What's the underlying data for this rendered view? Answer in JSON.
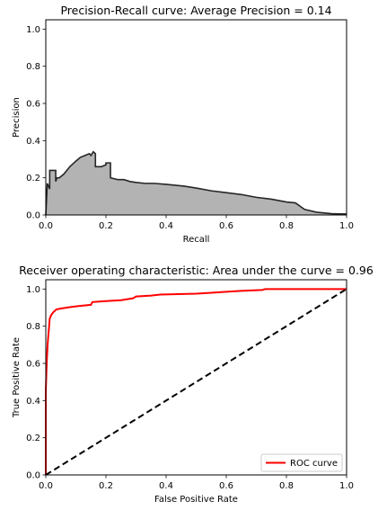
{
  "chart_data": [
    {
      "type": "area",
      "title": "Precision-Recall curve: Average Precision =     0.14",
      "xlabel": "Recall",
      "ylabel": "Precision",
      "xlim": [
        0,
        1
      ],
      "ylim": [
        0,
        1.05
      ],
      "xticks": [
        "0.0",
        "0.2",
        "0.4",
        "0.6",
        "0.8",
        "1.0"
      ],
      "yticks": [
        "0.0",
        "0.2",
        "0.4",
        "0.6",
        "0.8",
        "1.0"
      ],
      "grid": false,
      "fill_color": "#b3b3b3",
      "line_color": "#262626",
      "series": [
        {
          "x": [
            0.0,
            0.005,
            0.005,
            0.013,
            0.013,
            0.017,
            0.017,
            0.033,
            0.033,
            0.037,
            0.045,
            0.06,
            0.08,
            0.1,
            0.115,
            0.13,
            0.145,
            0.15,
            0.158,
            0.165,
            0.165,
            0.185,
            0.2,
            0.2,
            0.215,
            0.215,
            0.24,
            0.26,
            0.28,
            0.3,
            0.33,
            0.36,
            0.4,
            0.43,
            0.46,
            0.5,
            0.55,
            0.6,
            0.65,
            0.7,
            0.75,
            0.8,
            0.83,
            0.86,
            0.9,
            0.95,
            1.0
          ],
          "y": [
            0.0,
            0.17,
            0.17,
            0.14,
            0.24,
            0.24,
            0.24,
            0.24,
            0.18,
            0.2,
            0.2,
            0.22,
            0.26,
            0.29,
            0.31,
            0.32,
            0.33,
            0.32,
            0.34,
            0.33,
            0.26,
            0.26,
            0.27,
            0.28,
            0.28,
            0.2,
            0.19,
            0.19,
            0.18,
            0.175,
            0.17,
            0.17,
            0.165,
            0.16,
            0.155,
            0.145,
            0.13,
            0.12,
            0.11,
            0.095,
            0.085,
            0.07,
            0.065,
            0.03,
            0.015,
            0.007,
            0.005
          ]
        }
      ]
    },
    {
      "type": "line",
      "title": "Receiver operating characteristic:     Area under the curve = 0.96",
      "xlabel": "False Positive Rate",
      "ylabel": "True Positive Rate",
      "xlim": [
        0,
        1
      ],
      "ylim": [
        0,
        1.05
      ],
      "xticks": [
        "0.0",
        "0.2",
        "0.4",
        "0.6",
        "0.8",
        "1.0"
      ],
      "yticks": [
        "0.0",
        "0.2",
        "0.4",
        "0.6",
        "0.8",
        "1.0"
      ],
      "grid": false,
      "legend": {
        "placement": "lower-right",
        "entries": [
          {
            "name": "ROC curve",
            "color": "#ff0000"
          }
        ]
      },
      "series": [
        {
          "name": "ROC curve",
          "color": "#ff0000",
          "x": [
            0.0,
            0.0,
            0.003,
            0.006,
            0.01,
            0.013,
            0.018,
            0.025,
            0.035,
            0.05,
            0.07,
            0.09,
            0.12,
            0.15,
            0.155,
            0.2,
            0.25,
            0.29,
            0.3,
            0.35,
            0.38,
            0.5,
            0.55,
            0.6,
            0.65,
            0.72,
            0.73,
            1.0
          ],
          "y": [
            0.0,
            0.45,
            0.6,
            0.7,
            0.78,
            0.84,
            0.86,
            0.875,
            0.89,
            0.895,
            0.9,
            0.905,
            0.91,
            0.915,
            0.93,
            0.935,
            0.94,
            0.95,
            0.96,
            0.965,
            0.97,
            0.975,
            0.98,
            0.985,
            0.99,
            0.995,
            1.0,
            1.0
          ]
        },
        {
          "name": "",
          "style": "dashed",
          "color": "#000000",
          "x": [
            0,
            1
          ],
          "y": [
            0,
            1
          ]
        }
      ]
    }
  ]
}
